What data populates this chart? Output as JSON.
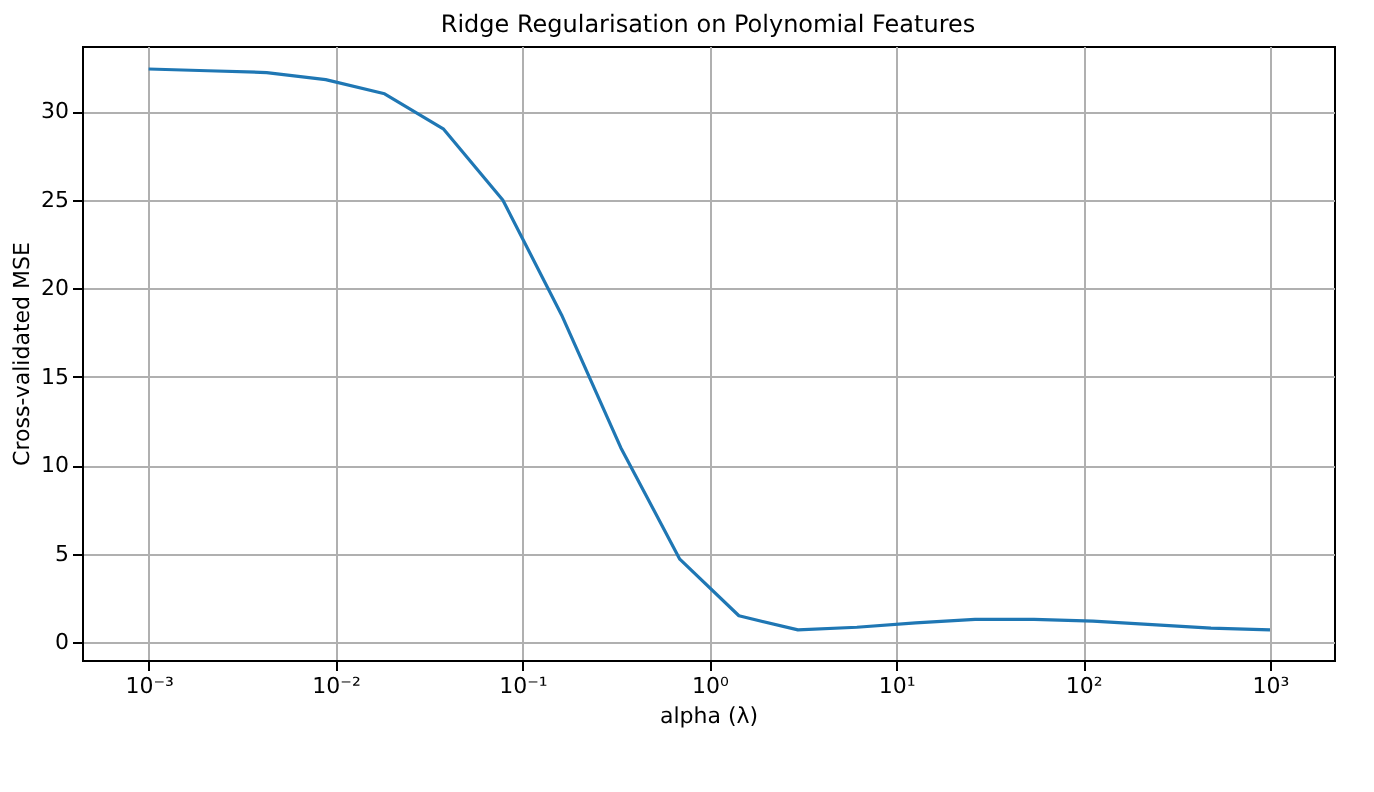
{
  "chart_data": {
    "type": "line",
    "title": "Ridge Regularisation on Polynomial Features",
    "xlabel": "alpha (λ)",
    "ylabel": "Cross-validated MSE",
    "log": "x",
    "grid": true,
    "legend": false,
    "marker": "none",
    "line_style": "solid",
    "x": [
      0.001,
      0.00207,
      0.00428,
      0.00886,
      0.0183,
      0.0379,
      0.0785,
      0.162,
      0.336,
      0.695,
      1.44,
      2.98,
      6.16,
      12.7,
      26.4,
      54.6,
      113,
      234,
      483,
      1000
    ],
    "series": [
      {
        "color": "#1f77b4",
        "values": [
          32.4,
          32.3,
          32.2,
          31.8,
          31.0,
          29.0,
          25.0,
          18.5,
          11.0,
          4.7,
          1.5,
          0.7,
          0.85,
          1.1,
          1.3,
          1.3,
          1.2,
          1.0,
          0.8,
          0.7
        ]
      }
    ],
    "xlim": [
      0.00044,
      2200
    ],
    "ylim": [
      -1.0,
      33.7
    ],
    "xticks": [
      {
        "value": 0.001,
        "label": "10⁻³"
      },
      {
        "value": 0.01,
        "label": "10⁻²"
      },
      {
        "value": 0.1,
        "label": "10⁻¹"
      },
      {
        "value": 1,
        "label": "10⁰"
      },
      {
        "value": 10,
        "label": "10¹"
      },
      {
        "value": 100,
        "label": "10²"
      },
      {
        "value": 1000,
        "label": "10³"
      }
    ],
    "yticks": [
      0,
      5,
      10,
      15,
      20,
      25,
      30
    ]
  }
}
